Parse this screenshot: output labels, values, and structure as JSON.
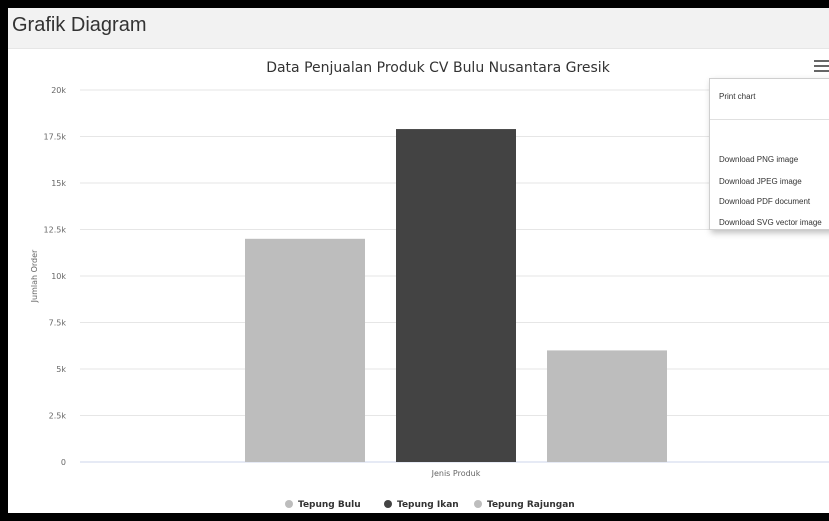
{
  "panel": {
    "title": "Grafik Diagram"
  },
  "menu": {
    "items": [
      "Print chart",
      "Download PNG image",
      "Download JPEG image",
      "Download PDF document",
      "Download SVG vector image"
    ]
  },
  "colors": {
    "light_bar": "#bdbdbd",
    "dark_bar": "#434343",
    "grid": "#e6e6e6"
  },
  "chart_data": {
    "type": "bar",
    "title": "Data Penjualan Produk CV Bulu Nusantara Gresik",
    "xlabel": "Jenis Produk",
    "ylabel": "Jumlah Order",
    "ylim": [
      0,
      20000
    ],
    "yticks": [
      {
        "value": 0,
        "label": "0"
      },
      {
        "value": 2500,
        "label": "2.5k"
      },
      {
        "value": 5000,
        "label": "5k"
      },
      {
        "value": 7500,
        "label": "7.5k"
      },
      {
        "value": 10000,
        "label": "10k"
      },
      {
        "value": 12500,
        "label": "12.5k"
      },
      {
        "value": 15000,
        "label": "15k"
      },
      {
        "value": 17500,
        "label": "17.5k"
      },
      {
        "value": 20000,
        "label": "20k"
      }
    ],
    "grid": true,
    "legend_position": "bottom-center",
    "series": [
      {
        "name": "Tepung Bulu",
        "value": 12000,
        "color": "#bdbdbd"
      },
      {
        "name": "Tepung Ikan",
        "value": 17900,
        "color": "#434343"
      },
      {
        "name": "Tepung Rajungan",
        "value": 6000,
        "color": "#bdbdbd"
      }
    ]
  }
}
